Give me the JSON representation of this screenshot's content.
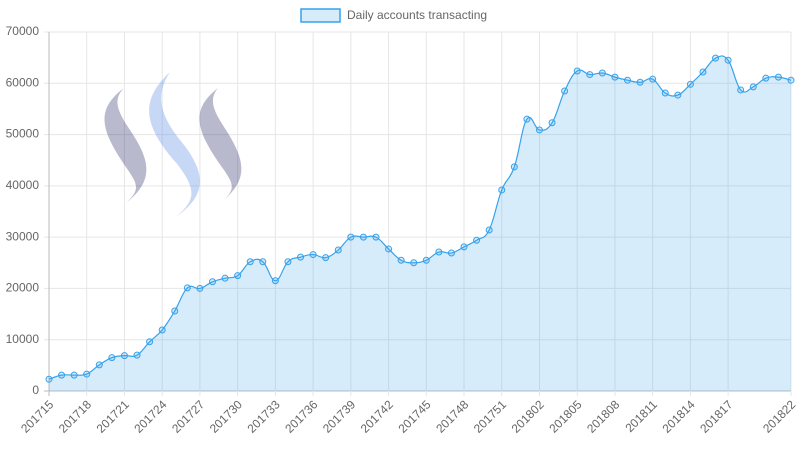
{
  "chart_data": {
    "type": "line",
    "categories": [
      "201715",
      null,
      null,
      "201718",
      null,
      null,
      "201721",
      null,
      null,
      "201724",
      null,
      null,
      "201727",
      null,
      null,
      "201730",
      null,
      null,
      "201733",
      null,
      null,
      "201736",
      null,
      null,
      "201739",
      null,
      null,
      "201742",
      null,
      null,
      "201745",
      null,
      null,
      "201748",
      null,
      null,
      "201751",
      null,
      null,
      "201802",
      null,
      null,
      "201805",
      null,
      null,
      "201808",
      null,
      null,
      "201811",
      null,
      null,
      "201814",
      null,
      null,
      "201817",
      null,
      null,
      null,
      null,
      "201822"
    ],
    "series": [
      {
        "name": "Daily accounts transacting",
        "color": "#36a2eb",
        "fill": "rgba(54,162,235,0.2)",
        "values": [
          2300,
          3100,
          3100,
          3300,
          5100,
          6500,
          6900,
          7000,
          9600,
          11900,
          15600,
          20100,
          20000,
          21300,
          22000,
          22500,
          25200,
          25200,
          21500,
          25200,
          26100,
          26600,
          26000,
          27500,
          30000,
          30000,
          30000,
          27700,
          25500,
          25000,
          25500,
          27100,
          26900,
          28100,
          29400,
          31400,
          39200,
          43700,
          53000,
          50900,
          52300,
          58500,
          62400,
          61700,
          62000,
          61200,
          60600,
          60200,
          60800,
          58100,
          57700,
          59800,
          62200,
          64900,
          64500,
          58700,
          59300,
          61000,
          61200,
          60600
        ]
      }
    ],
    "ylim": [
      0,
      70000
    ],
    "yticks": [
      0,
      10000,
      20000,
      30000,
      40000,
      50000,
      60000,
      70000
    ],
    "grid": true,
    "legend": "top"
  }
}
